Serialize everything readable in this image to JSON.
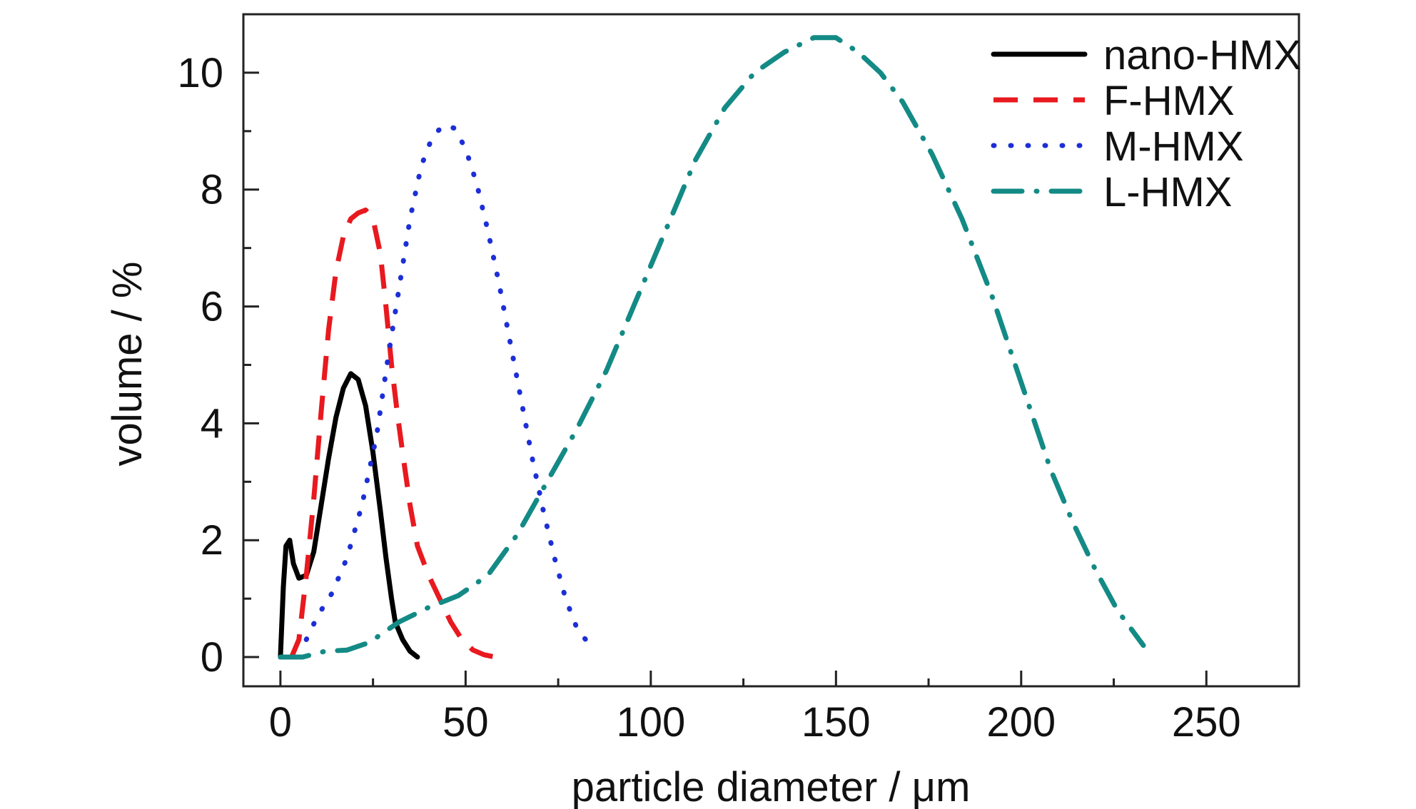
{
  "chart_data": {
    "type": "line",
    "title": "",
    "xlabel": "particle diameter / μm",
    "ylabel": "volume / %",
    "xlim": [
      -10,
      275
    ],
    "ylim": [
      -0.5,
      11
    ],
    "x_ticks": [
      0,
      50,
      100,
      150,
      200,
      250
    ],
    "y_ticks": [
      0,
      2,
      4,
      6,
      8,
      10
    ],
    "grid": false,
    "legend_position": "top-right",
    "series": [
      {
        "name": "nano-HMX",
        "color": "#000000",
        "style": "solid",
        "x": [
          0,
          0.8,
          1.5,
          2.5,
          3.5,
          5,
          7,
          9,
          11,
          13,
          15,
          17,
          19,
          21,
          23,
          25,
          27,
          28.5,
          30,
          31,
          33,
          35,
          37
        ],
        "y": [
          0,
          1.2,
          1.9,
          2.0,
          1.6,
          1.35,
          1.4,
          1.8,
          2.6,
          3.4,
          4.1,
          4.6,
          4.85,
          4.75,
          4.3,
          3.5,
          2.5,
          1.7,
          1.0,
          0.6,
          0.3,
          0.1,
          0
        ]
      },
      {
        "name": "F-HMX",
        "color": "#e8191f",
        "style": "dashed",
        "x": [
          3,
          5,
          7,
          9,
          11,
          13,
          15,
          17,
          19,
          21,
          23,
          25,
          27,
          28.5,
          30,
          31.5,
          33,
          35,
          37,
          40,
          43,
          46,
          49,
          52,
          55,
          58
        ],
        "y": [
          0,
          0.3,
          1.4,
          2.7,
          4.2,
          5.6,
          6.6,
          7.2,
          7.5,
          7.6,
          7.65,
          7.5,
          6.9,
          6.0,
          5.0,
          4.2,
          3.5,
          2.6,
          1.9,
          1.4,
          1.0,
          0.6,
          0.3,
          0.12,
          0.04,
          0
        ]
      },
      {
        "name": "M-HMX",
        "color": "#1c2fd6",
        "style": "dotted",
        "x": [
          7,
          10,
          14,
          18,
          22,
          26,
          29,
          32,
          35,
          38,
          41,
          44,
          47,
          50,
          53,
          56,
          59,
          62,
          65,
          68,
          71,
          74,
          77,
          80,
          83
        ],
        "y": [
          0.3,
          0.7,
          1.1,
          1.7,
          2.6,
          3.8,
          5.1,
          6.3,
          7.5,
          8.4,
          8.9,
          9.1,
          9.05,
          8.7,
          8.1,
          7.3,
          6.4,
          5.4,
          4.4,
          3.4,
          2.5,
          1.7,
          1.0,
          0.5,
          0.25
        ]
      },
      {
        "name": "L-HMX",
        "color": "#138a85",
        "style": "dashdot",
        "x": [
          0,
          6,
          12,
          18,
          24,
          32,
          40,
          48,
          56,
          64,
          72,
          80,
          88,
          96,
          104,
          112,
          120,
          128,
          136,
          144,
          150,
          156,
          162,
          168,
          176,
          184,
          192,
          200,
          208,
          214,
          220,
          226,
          233
        ],
        "y": [
          0,
          0,
          0.1,
          0.12,
          0.25,
          0.6,
          0.85,
          1.05,
          1.4,
          2.1,
          3.0,
          3.9,
          4.9,
          6.1,
          7.3,
          8.5,
          9.4,
          10.0,
          10.35,
          10.6,
          10.6,
          10.35,
          10.0,
          9.5,
          8.6,
          7.5,
          6.2,
          4.7,
          3.2,
          2.3,
          1.5,
          0.8,
          0.2
        ]
      }
    ]
  }
}
